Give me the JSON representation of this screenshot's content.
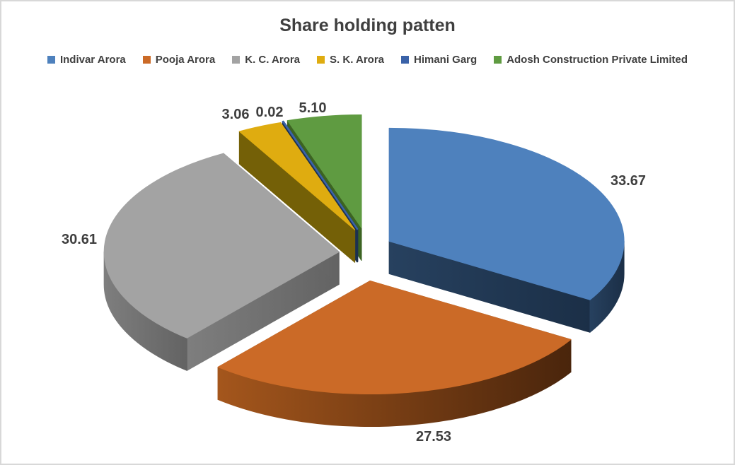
{
  "frame": {
    "background": "#FFFFFF",
    "border_color": "#D8D8D8"
  },
  "chart_data": {
    "type": "pie",
    "style": "3d-exploded-pie",
    "title": "Share holding patten",
    "title_color": "#3F3F3F",
    "label_color": "#3F3F3F",
    "legend_position": "top",
    "grid": false,
    "categories": [
      "Indivar Arora",
      "Pooja Arora",
      "K. C. Arora",
      "S. K. Arora",
      "Himani Garg",
      "Adosh Construction Private Limited"
    ],
    "values": [
      33.67,
      27.53,
      30.61,
      3.06,
      0.02,
      5.1
    ],
    "values_formatted": [
      "33.67",
      "27.53",
      "30.61",
      "3.06",
      "0.02",
      "5.10"
    ],
    "colors": {
      "top": [
        "#4E81BD",
        "#CB6A27",
        "#A3A3A3",
        "#DFAC10",
        "#3A62A8",
        "#5F9B41"
      ],
      "side": [
        "#27415F",
        "#A4561C",
        "#7E7E7E",
        "#746007",
        "#1C3150",
        "#3C6322"
      ],
      "side2": [
        "#1B2F47",
        "#4A250C",
        "#636363",
        null,
        null,
        null
      ]
    }
  }
}
